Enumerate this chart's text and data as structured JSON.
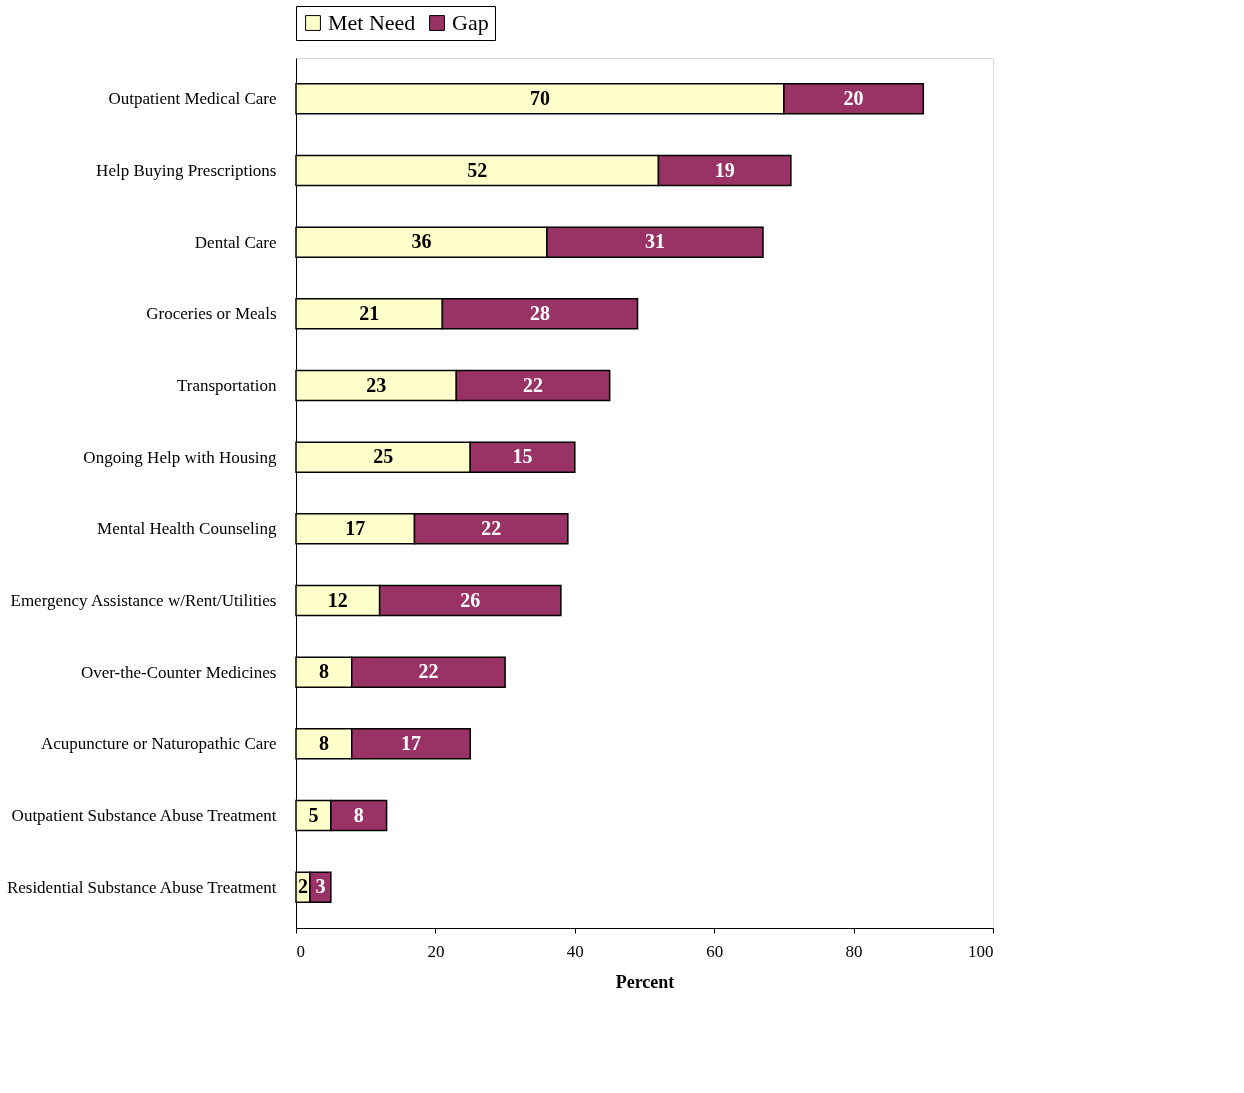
{
  "chart_data": {
    "type": "bar",
    "orientation": "horizontal",
    "stacked": true,
    "xlabel": "Percent",
    "categories": [
      "Outpatient Medical Care",
      "Help Buying Prescriptions",
      "Dental Care",
      "Groceries or Meals",
      "Transportation",
      "Ongoing Help with Housing",
      "Mental Health Counseling",
      "Emergency Assistance w/Rent/Utilities",
      "Over-the-Counter Medicines",
      "Acupuncture or Naturopathic Care",
      "Outpatient Substance Abuse Treatment",
      "Residential Substance Abuse Treatment"
    ],
    "series": [
      {
        "name": "Met Need",
        "color": "#ffffcc",
        "values": [
          70,
          52,
          36,
          21,
          23,
          25,
          17,
          12,
          8,
          8,
          5,
          2
        ]
      },
      {
        "name": "Gap",
        "color": "#993366",
        "values": [
          20,
          19,
          31,
          28,
          22,
          15,
          22,
          26,
          22,
          17,
          8,
          3
        ]
      }
    ],
    "xlim": [
      0,
      100
    ],
    "xticks": [
      0,
      20,
      40,
      60,
      80,
      100
    ],
    "grid": false,
    "legend": "top",
    "data_labels": true
  }
}
